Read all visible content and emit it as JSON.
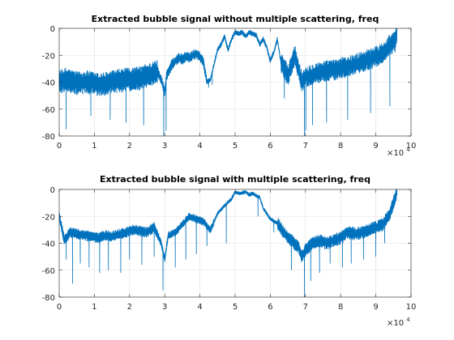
{
  "chart_data": [
    {
      "type": "line",
      "title": "Extracted bubble signal without multiple scattering, freq",
      "xlabel": "",
      "ylabel": "",
      "xlim": [
        0,
        100000
      ],
      "ylim": [
        -80,
        0
      ],
      "x_tick_labels": [
        "0",
        "1",
        "2",
        "3",
        "4",
        "5",
        "6",
        "7",
        "8",
        "9",
        "10"
      ],
      "y_tick_labels": [
        "0",
        "-20",
        "-40",
        "-60",
        "-80"
      ],
      "x_exponent_label": "×10",
      "x_exponent_power": "4",
      "grid": true,
      "color": "#0072BD",
      "x": [
        0,
        2000,
        5000,
        8000,
        11000,
        14000,
        17000,
        20000,
        23000,
        26000,
        28000,
        29000,
        30000,
        30500,
        32000,
        34000,
        35000,
        36000,
        37000,
        38000,
        39000,
        40000,
        41000,
        42000,
        43000,
        45000,
        46000,
        47000,
        48000,
        49000,
        50000,
        51000,
        52000,
        53000,
        54000,
        55000,
        56000,
        57000,
        58000,
        59000,
        60000,
        61000,
        62000,
        63000,
        65000,
        67000,
        68000,
        69000,
        70000,
        72000,
        75000,
        78000,
        81000,
        84000,
        87000,
        90000,
        92000,
        94000,
        95500,
        96000
      ],
      "values": [
        -40,
        -38,
        -41,
        -40,
        -42,
        -41,
        -39,
        -38,
        -37,
        -34,
        -32,
        -38,
        -48,
        -35,
        -27,
        -22,
        -23,
        -21,
        -22,
        -20,
        -19,
        -21,
        -25,
        -40,
        -38,
        -16,
        -12,
        -6,
        -16,
        -8,
        -3,
        -4,
        -3,
        -6,
        -3,
        -4,
        -5,
        -12,
        -8,
        -14,
        -24,
        -18,
        -8,
        -25,
        -35,
        -20,
        -31,
        -40,
        -36,
        -34,
        -32,
        -31,
        -29,
        -27,
        -24,
        -21,
        -18,
        -12,
        -10,
        -2
      ],
      "noise_band": [
        {
          "from": 0,
          "to": 28000,
          "amplitude": 9
        },
        {
          "from": 28000,
          "to": 42000,
          "amplitude": 4
        },
        {
          "from": 42000,
          "to": 63000,
          "amplitude": 2
        },
        {
          "from": 63000,
          "to": 96000,
          "amplitude": 8
        }
      ],
      "dips": [
        {
          "x": 2000,
          "y": -75
        },
        {
          "x": 9000,
          "y": -65
        },
        {
          "x": 14500,
          "y": -68
        },
        {
          "x": 19000,
          "y": -70
        },
        {
          "x": 24000,
          "y": -72
        },
        {
          "x": 29700,
          "y": -80
        },
        {
          "x": 30400,
          "y": -76
        },
        {
          "x": 42500,
          "y": -44
        },
        {
          "x": 43500,
          "y": -42
        },
        {
          "x": 64000,
          "y": -52
        },
        {
          "x": 69700,
          "y": -80
        },
        {
          "x": 70100,
          "y": -76
        },
        {
          "x": 72000,
          "y": -72
        },
        {
          "x": 76000,
          "y": -70
        },
        {
          "x": 82000,
          "y": -68
        },
        {
          "x": 88500,
          "y": -63
        },
        {
          "x": 94000,
          "y": -58
        }
      ]
    },
    {
      "type": "line",
      "title": "Extracted bubble signal with multiple scattering, freq",
      "xlabel": "",
      "ylabel": "",
      "xlim": [
        0,
        100000
      ],
      "ylim": [
        -80,
        0
      ],
      "x_tick_labels": [
        "0",
        "1",
        "2",
        "3",
        "4",
        "5",
        "6",
        "7",
        "8",
        "9",
        "10"
      ],
      "y_tick_labels": [
        "0",
        "-20",
        "-40",
        "-60",
        "-80"
      ],
      "x_exponent_label": "×10",
      "x_exponent_power": "4",
      "grid": true,
      "color": "#0072BD",
      "x": [
        0,
        1500,
        3000,
        5000,
        7000,
        9000,
        11000,
        13000,
        15000,
        17000,
        19000,
        21000,
        23000,
        25000,
        27000,
        29000,
        30000,
        31000,
        33000,
        35000,
        37000,
        39000,
        41000,
        43000,
        45000,
        47000,
        49000,
        50000,
        51000,
        53000,
        54000,
        55000,
        57000,
        58000,
        60000,
        62000,
        64000,
        66000,
        68000,
        69000,
        70000,
        72000,
        74000,
        76000,
        78000,
        80000,
        82000,
        84000,
        86000,
        88000,
        90000,
        92000,
        94000,
        96000
      ],
      "values": [
        -20,
        -38,
        -32,
        -33,
        -34,
        -35,
        -36,
        -34,
        -35,
        -33,
        -32,
        -30,
        -31,
        -32,
        -28,
        -40,
        -52,
        -34,
        -32,
        -26,
        -20,
        -22,
        -24,
        -30,
        -18,
        -12,
        -7,
        -2,
        -3,
        -2,
        -4,
        -3,
        -6,
        -14,
        -22,
        -25,
        -33,
        -38,
        -43,
        -50,
        -45,
        -40,
        -38,
        -40,
        -38,
        -36,
        -32,
        -33,
        -32,
        -30,
        -28,
        -26,
        -18,
        -2
      ],
      "noise_band": [
        {
          "from": 0,
          "to": 28000,
          "amplitude": 4
        },
        {
          "from": 28000,
          "to": 44000,
          "amplitude": 3
        },
        {
          "from": 44000,
          "to": 62000,
          "amplitude": 1.5
        },
        {
          "from": 62000,
          "to": 96000,
          "amplitude": 5
        }
      ],
      "dips": [
        {
          "x": 2000,
          "y": -52
        },
        {
          "x": 3800,
          "y": -70
        },
        {
          "x": 6000,
          "y": -55
        },
        {
          "x": 8500,
          "y": -58
        },
        {
          "x": 11500,
          "y": -62
        },
        {
          "x": 14000,
          "y": -60
        },
        {
          "x": 17500,
          "y": -62
        },
        {
          "x": 20000,
          "y": -52
        },
        {
          "x": 23500,
          "y": -56
        },
        {
          "x": 27000,
          "y": -50
        },
        {
          "x": 29500,
          "y": -75
        },
        {
          "x": 33000,
          "y": -58
        },
        {
          "x": 36000,
          "y": -52
        },
        {
          "x": 39000,
          "y": -48
        },
        {
          "x": 42000,
          "y": -42
        },
        {
          "x": 47500,
          "y": -40
        },
        {
          "x": 56500,
          "y": -20
        },
        {
          "x": 61000,
          "y": -32
        },
        {
          "x": 66000,
          "y": -60
        },
        {
          "x": 69700,
          "y": -80
        },
        {
          "x": 71500,
          "y": -68
        },
        {
          "x": 74000,
          "y": -62
        },
        {
          "x": 77000,
          "y": -55
        },
        {
          "x": 80500,
          "y": -58
        },
        {
          "x": 83000,
          "y": -55
        },
        {
          "x": 86500,
          "y": -52
        },
        {
          "x": 90000,
          "y": -50
        },
        {
          "x": 92500,
          "y": -40
        }
      ]
    }
  ]
}
